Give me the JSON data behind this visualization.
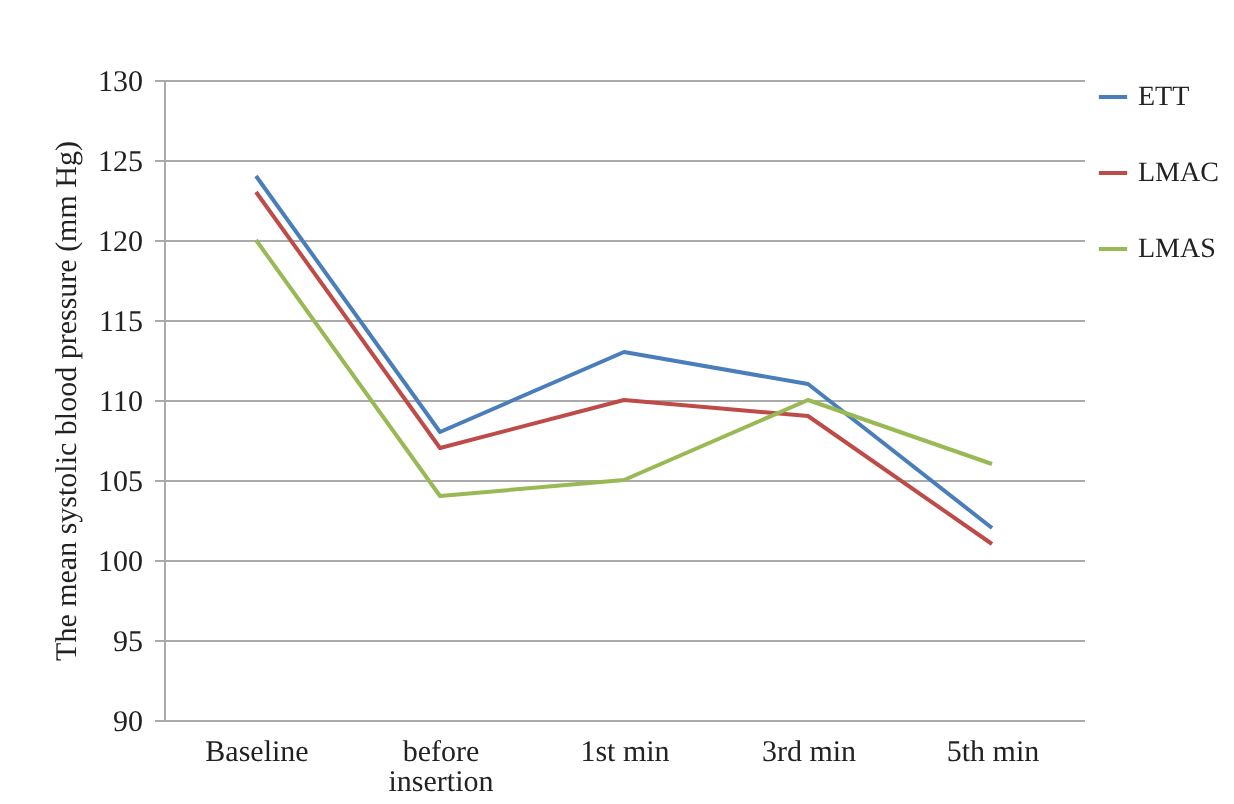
{
  "chart_data": {
    "type": "line",
    "ylabel": "The mean systolic blood pressure (mm Hg)",
    "categories": [
      "Baseline",
      "before insertion",
      "1st min",
      "3rd min",
      "5th min"
    ],
    "series": [
      {
        "name": "ETT",
        "color": "#4a7ebb",
        "values": [
          124,
          108,
          113,
          111,
          102
        ]
      },
      {
        "name": "LMAC",
        "color": "#be4b48",
        "values": [
          123,
          107,
          110,
          109,
          101
        ]
      },
      {
        "name": "LMAS",
        "color": "#98b954",
        "values": [
          120,
          104,
          105,
          110,
          106
        ]
      }
    ],
    "ylim": [
      90,
      130
    ],
    "yticks": [
      90,
      95,
      100,
      105,
      110,
      115,
      120,
      125,
      130
    ],
    "grid": "y",
    "legend": "right",
    "marker": "none",
    "line_style": "solid"
  }
}
